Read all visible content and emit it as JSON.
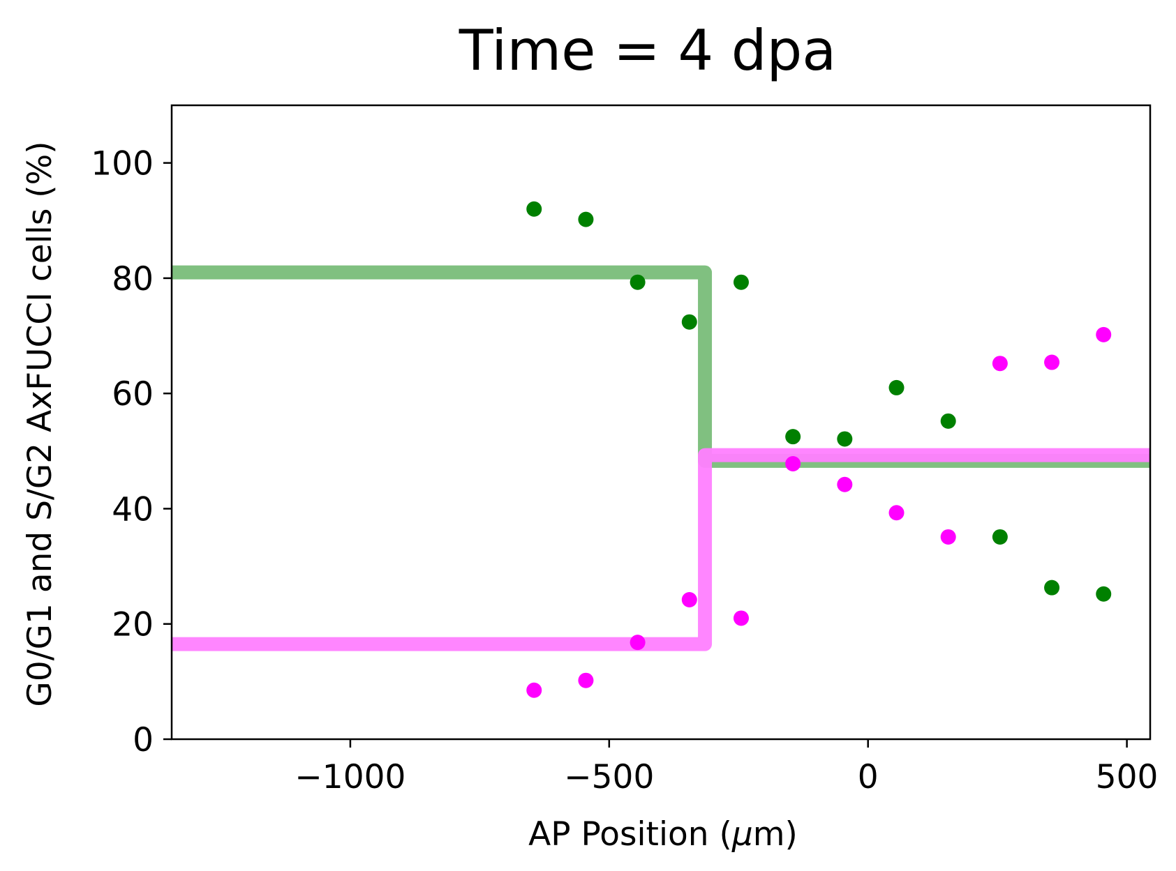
{
  "chart_data": {
    "type": "scatter",
    "title": "Time = 4 dpa",
    "xlabel_main": "AP Position (",
    "xlabel_unit": "μ",
    "xlabel_tail": "m)",
    "ylabel": "G0/G1 and S/G2 AxFUCCI cells (%)",
    "xlim": [
      -1345,
      545
    ],
    "ylim": [
      0,
      110
    ],
    "xticks": [
      -1000,
      -500,
      0,
      500
    ],
    "xtick_labels": [
      "−1000",
      "−500",
      "0",
      "500"
    ],
    "yticks": [
      0,
      20,
      40,
      60,
      80,
      100
    ],
    "ytick_labels": [
      "0",
      "20",
      "40",
      "60",
      "80",
      "100"
    ],
    "colors": {
      "g0g1": "#008000",
      "sg2": "#ff00ff",
      "g0g1_step": "#80c080",
      "sg2_step": "#ff80ff"
    },
    "series": [
      {
        "role": "g0g1-points",
        "points": [
          [
            -645,
            92
          ],
          [
            -545,
            90.2
          ],
          [
            -445,
            79.3
          ],
          [
            -345,
            72.4
          ],
          [
            -245,
            79.3
          ],
          [
            -145,
            52.5
          ],
          [
            -45,
            52.1
          ],
          [
            55,
            61
          ],
          [
            155,
            55.2
          ],
          [
            255,
            35.1
          ],
          [
            355,
            26.3
          ],
          [
            455,
            25.2
          ]
        ]
      },
      {
        "role": "sg2-points",
        "points": [
          [
            -645,
            8.5
          ],
          [
            -545,
            10.2
          ],
          [
            -445,
            16.8
          ],
          [
            -345,
            24.2
          ],
          [
            -245,
            21
          ],
          [
            -145,
            47.8
          ],
          [
            -45,
            44.2
          ],
          [
            55,
            39.3
          ],
          [
            155,
            35.1
          ],
          [
            255,
            65.2
          ],
          [
            355,
            65.4
          ],
          [
            455,
            70.2
          ]
        ]
      }
    ],
    "steps": [
      {
        "role": "g0g1-step",
        "x_break": -315,
        "left_value": 81,
        "right_value": 48.3
      },
      {
        "role": "sg2-step",
        "x_break": -315,
        "left_value": 16.5,
        "right_value": 49.3
      }
    ]
  }
}
